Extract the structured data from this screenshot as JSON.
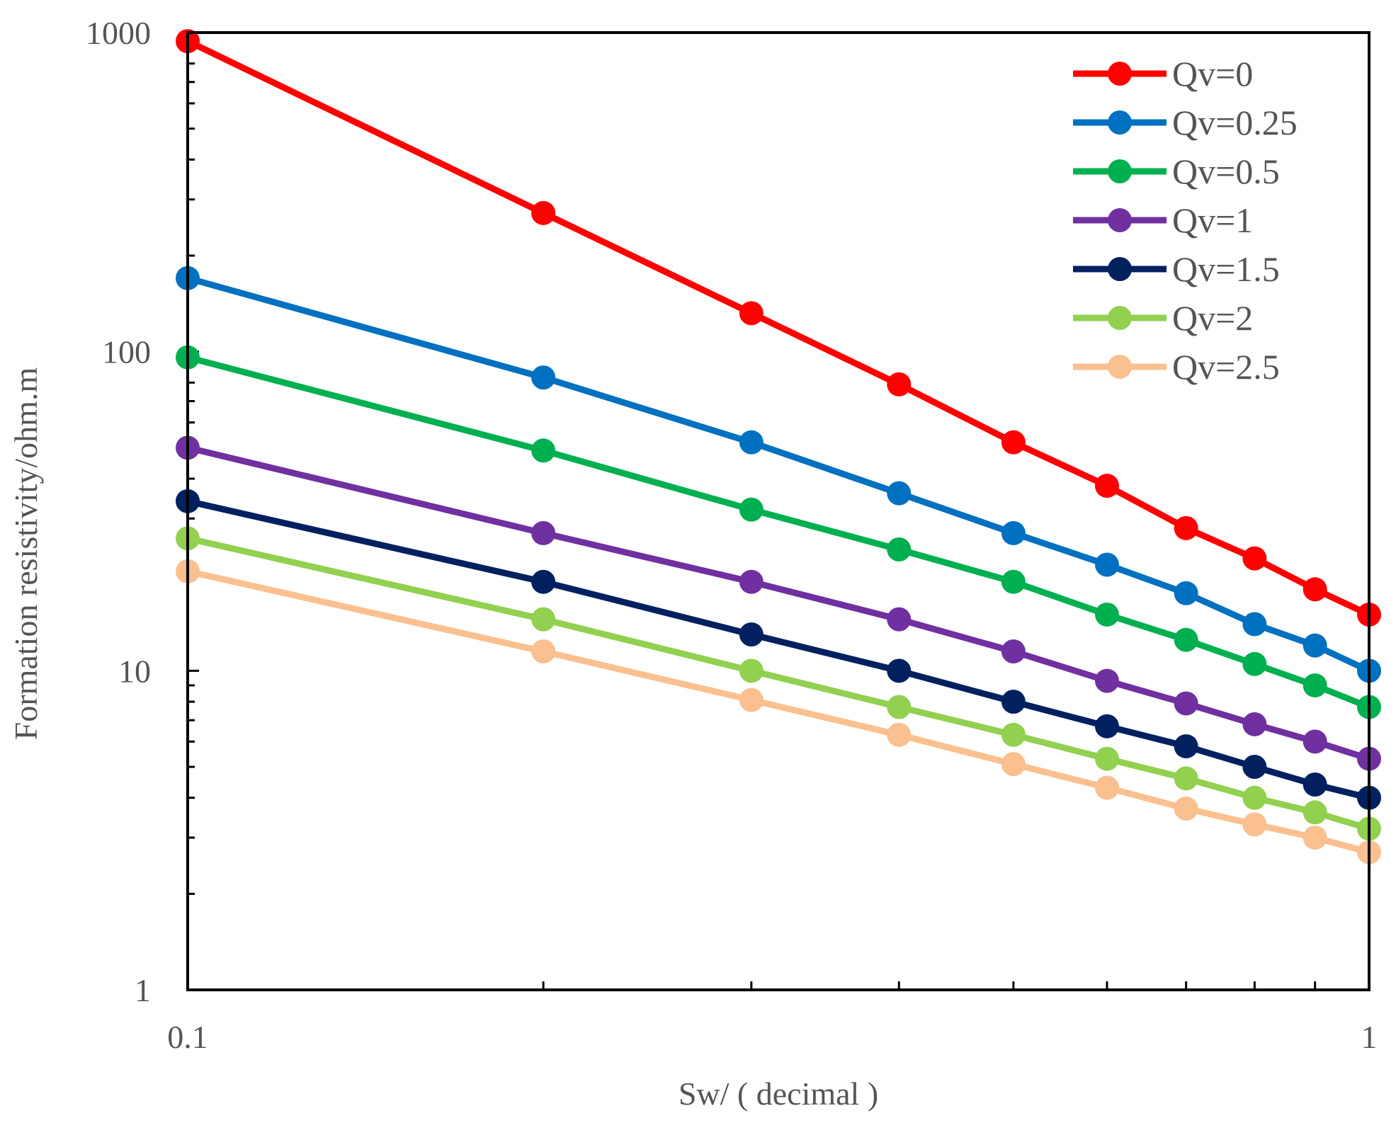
{
  "chart_data": {
    "type": "line",
    "xscale": "log",
    "yscale": "log",
    "xlabel": "Sw/ ( decimal )",
    "ylabel": "Formation resistivity/ohm.m",
    "xlim": [
      0.1,
      1
    ],
    "ylim": [
      1,
      1000
    ],
    "x_tick_labels": [
      {
        "value": 0.1,
        "label": "0.1"
      },
      {
        "value": 1,
        "label": "1"
      }
    ],
    "y_tick_labels": [
      {
        "value": 1,
        "label": "1"
      },
      {
        "value": 10,
        "label": "10"
      },
      {
        "value": 100,
        "label": "100"
      },
      {
        "value": 1000,
        "label": "1000"
      }
    ],
    "x": [
      0.1,
      0.2,
      0.3,
      0.4,
      0.5,
      0.6,
      0.7,
      0.8,
      0.9,
      1.0
    ],
    "series": [
      {
        "name": "Qv=0",
        "color": "#ff0000",
        "values": [
          940,
          272,
          132,
          79,
          52,
          38,
          28,
          22.5,
          18,
          15
        ]
      },
      {
        "name": "Qv=0.25",
        "color": "#0070c0",
        "values": [
          170,
          83,
          52,
          36,
          27,
          21.5,
          17.5,
          14,
          12,
          10
        ]
      },
      {
        "name": "Qv=0.5",
        "color": "#00b050",
        "values": [
          96,
          49,
          32,
          24,
          19,
          15,
          12.5,
          10.5,
          9,
          7.7
        ]
      },
      {
        "name": "Qv=1",
        "color": "#7030a0",
        "values": [
          50,
          27,
          19,
          14.5,
          11.5,
          9.3,
          7.9,
          6.8,
          6,
          5.3
        ]
      },
      {
        "name": "Qv=1.5",
        "color": "#002060",
        "values": [
          34,
          19,
          13,
          10,
          8,
          6.7,
          5.8,
          5,
          4.4,
          4
        ]
      },
      {
        "name": "Qv=2",
        "color": "#92d050",
        "values": [
          26,
          14.5,
          10,
          7.7,
          6.3,
          5.3,
          4.6,
          4,
          3.6,
          3.2
        ]
      },
      {
        "name": "Qv=2.5",
        "color": "#fac090",
        "values": [
          20.5,
          11.5,
          8.1,
          6.3,
          5.1,
          4.3,
          3.7,
          3.3,
          3,
          2.7
        ]
      }
    ],
    "legend_position": "top-right",
    "grid": false
  }
}
